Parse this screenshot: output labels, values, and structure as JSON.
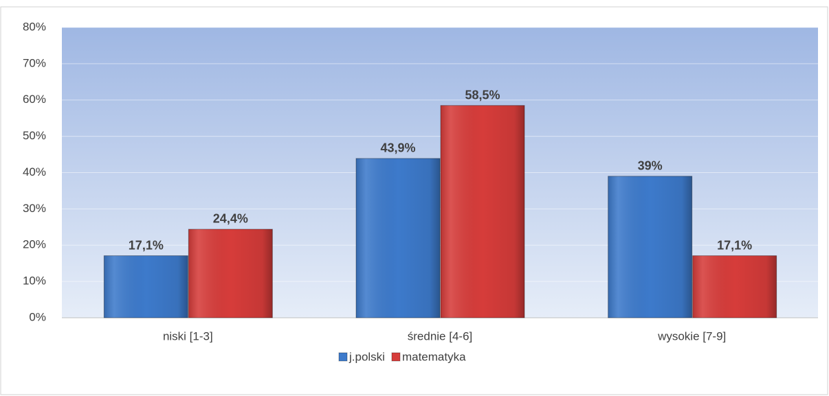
{
  "chart_data": {
    "type": "bar",
    "categories": [
      "niski [1-3]",
      "średnie [4-6]",
      "wysokie [7-9]"
    ],
    "series": [
      {
        "name": "j.polski",
        "color": "#3d7acb",
        "values": [
          17.1,
          43.9,
          39
        ],
        "value_labels": [
          "17,1%",
          "43,9%",
          "39%"
        ]
      },
      {
        "name": "matematyka",
        "color": "#d63c3a",
        "values": [
          24.4,
          58.5,
          17.1
        ],
        "value_labels": [
          "24,4%",
          "58,5%",
          "17,1%"
        ]
      }
    ],
    "ylim": [
      0,
      80
    ],
    "yticks": [
      {
        "value": 0,
        "label": "0%"
      },
      {
        "value": 10,
        "label": "10%"
      },
      {
        "value": 20,
        "label": "20%"
      },
      {
        "value": 30,
        "label": "30%"
      },
      {
        "value": 40,
        "label": "40%"
      },
      {
        "value": 50,
        "label": "50%"
      },
      {
        "value": 60,
        "label": "60%"
      },
      {
        "value": 70,
        "label": "70%"
      },
      {
        "value": 80,
        "label": "80%"
      }
    ],
    "grid": true,
    "legend": "bottom"
  }
}
